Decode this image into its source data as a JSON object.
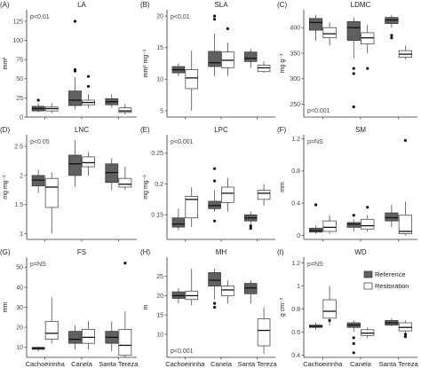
{
  "figure": {
    "categories": [
      "Cachoeirinha",
      "Canela",
      "Santa Tereza"
    ],
    "legend": {
      "entries": [
        "Reference",
        "Restoration"
      ]
    }
  },
  "colors": {
    "reference_fill": "#606060",
    "restoration_fill": "#ffffff",
    "box_stroke": "#333333",
    "axis": "#333333"
  },
  "chart_data": [
    {
      "panel": "(A)",
      "type": "boxplot",
      "title": "LA",
      "ylabel": "mm²",
      "pvalue": "p<0.01",
      "ylim": [
        0,
        140
      ],
      "yticks": [
        0,
        25,
        50,
        75,
        100,
        125
      ],
      "series": [
        {
          "name": "Reference",
          "boxes": [
            {
              "min": 6,
              "q1": 8,
              "median": 11,
              "q3": 14,
              "max": 18,
              "outliers": [
                22
              ]
            },
            {
              "min": 10,
              "q1": 15,
              "median": 22,
              "q3": 34,
              "max": 52,
              "outliers": [
                60,
                62,
                125
              ]
            },
            {
              "min": 12,
              "q1": 16,
              "median": 20,
              "q3": 24,
              "max": 30,
              "outliers": []
            }
          ]
        },
        {
          "name": "Restoration",
          "boxes": [
            {
              "min": 5,
              "q1": 8,
              "median": 11,
              "q3": 13,
              "max": 18,
              "outliers": []
            },
            {
              "min": 12,
              "q1": 16,
              "median": 19,
              "q3": 22,
              "max": 30,
              "outliers": [
                40,
                53
              ]
            },
            {
              "min": 3,
              "q1": 6,
              "median": 8,
              "q3": 12,
              "max": 17,
              "outliers": []
            }
          ]
        }
      ]
    },
    {
      "panel": "(B)",
      "type": "boxplot",
      "title": "SLA",
      "ylabel": "mm² mg⁻¹",
      "pvalue": "p<0.01",
      "ylim": [
        4,
        21
      ],
      "yticks": [
        5,
        10,
        15,
        20
      ],
      "series": [
        {
          "name": "Reference",
          "boxes": [
            {
              "min": 10.5,
              "q1": 11.0,
              "median": 11.5,
              "q3": 12.0,
              "max": 12.5,
              "outliers": []
            },
            {
              "min": 10.5,
              "q1": 12.0,
              "median": 12.6,
              "q3": 14.4,
              "max": 17.2,
              "outliers": [
                19.5,
                20.0
              ]
            },
            {
              "min": 11.8,
              "q1": 12.8,
              "median": 13.3,
              "q3": 14.3,
              "max": 14.8,
              "outliers": []
            }
          ]
        },
        {
          "name": "Restoration",
          "boxes": [
            {
              "min": 5.0,
              "q1": 8.5,
              "median": 10.2,
              "q3": 11.5,
              "max": 14.5,
              "outliers": []
            },
            {
              "min": 10.5,
              "q1": 11.8,
              "median": 13.0,
              "q3": 14.3,
              "max": 15.8,
              "outliers": [
                18.0
              ]
            },
            {
              "min": 11.0,
              "q1": 11.2,
              "median": 11.8,
              "q3": 12.2,
              "max": 12.8,
              "outliers": []
            }
          ]
        }
      ]
    },
    {
      "panel": "(C)",
      "type": "boxplot",
      "title": "LDMC",
      "ylabel": "mg g⁻¹",
      "pvalue": "p<0.001",
      "ylim": [
        225,
        435
      ],
      "yticks": [
        250,
        300,
        350,
        400
      ],
      "series": [
        {
          "name": "Reference",
          "boxes": [
            {
              "min": 375,
              "q1": 395,
              "median": 410,
              "q3": 418,
              "max": 425,
              "outliers": []
            },
            {
              "min": 340,
              "q1": 375,
              "median": 400,
              "q3": 412,
              "max": 420,
              "outliers": [
                320,
                310,
                245
              ]
            },
            {
              "min": 400,
              "q1": 408,
              "median": 415,
              "q3": 420,
              "max": 425,
              "outliers": [
                385,
                380
              ]
            }
          ]
        },
        {
          "name": "Restoration",
          "boxes": [
            {
              "min": 365,
              "q1": 380,
              "median": 388,
              "q3": 400,
              "max": 410,
              "outliers": []
            },
            {
              "min": 350,
              "q1": 368,
              "median": 380,
              "q3": 390,
              "max": 405,
              "outliers": [
                320
              ]
            },
            {
              "min": 338,
              "q1": 342,
              "median": 348,
              "q3": 355,
              "max": 365,
              "outliers": []
            }
          ]
        }
      ]
    },
    {
      "panel": "(D)",
      "type": "boxplot",
      "title": "LNC",
      "ylabel": "mg mg⁻¹",
      "pvalue": "p<0.05",
      "ylim": [
        0.9,
        2.7
      ],
      "yticks": [
        1.0,
        1.5,
        2.0,
        2.5
      ],
      "series": [
        {
          "name": "Reference",
          "boxes": [
            {
              "min": 1.7,
              "q1": 1.82,
              "median": 1.92,
              "q3": 2.0,
              "max": 2.1,
              "outliers": []
            },
            {
              "min": 1.8,
              "q1": 2.0,
              "median": 2.2,
              "q3": 2.35,
              "max": 2.6,
              "outliers": []
            },
            {
              "min": 1.75,
              "q1": 1.88,
              "median": 2.05,
              "q3": 2.2,
              "max": 2.3,
              "outliers": []
            }
          ]
        },
        {
          "name": "Restoration",
          "boxes": [
            {
              "min": 1.0,
              "q1": 1.45,
              "median": 1.8,
              "q3": 1.95,
              "max": 2.05,
              "outliers": []
            },
            {
              "min": 2.0,
              "q1": 2.15,
              "median": 2.22,
              "q3": 2.32,
              "max": 2.4,
              "outliers": []
            },
            {
              "min": 1.75,
              "q1": 1.8,
              "median": 1.85,
              "q3": 1.95,
              "max": 2.15,
              "outliers": []
            }
          ]
        }
      ]
    },
    {
      "panel": "(E)",
      "type": "boxplot",
      "title": "LPC",
      "ylabel": "mg mg⁻¹",
      "pvalue": "p<0.001",
      "ylim": [
        0.11,
        0.28
      ],
      "yticks": [
        0.15,
        0.2,
        0.25
      ],
      "series": [
        {
          "name": "Reference",
          "boxes": [
            {
              "min": 0.125,
              "q1": 0.13,
              "median": 0.135,
              "q3": 0.145,
              "max": 0.16,
              "outliers": []
            },
            {
              "min": 0.155,
              "q1": 0.16,
              "median": 0.165,
              "q3": 0.172,
              "max": 0.19,
              "outliers": [
                0.205,
                0.225,
                0.14
              ]
            },
            {
              "min": 0.135,
              "q1": 0.14,
              "median": 0.145,
              "q3": 0.15,
              "max": 0.155,
              "outliers": [
                0.132,
                0.128
              ]
            }
          ]
        },
        {
          "name": "Restoration",
          "boxes": [
            {
              "min": 0.13,
              "q1": 0.145,
              "median": 0.175,
              "q3": 0.18,
              "max": 0.195,
              "outliers": []
            },
            {
              "min": 0.155,
              "q1": 0.17,
              "median": 0.185,
              "q3": 0.195,
              "max": 0.21,
              "outliers": []
            },
            {
              "min": 0.165,
              "q1": 0.175,
              "median": 0.185,
              "q3": 0.19,
              "max": 0.2,
              "outliers": []
            }
          ]
        }
      ]
    },
    {
      "panel": "(F)",
      "type": "boxplot",
      "title": "SM",
      "ylabel": "mm",
      "pvalue": "p=NS",
      "ylim": [
        -0.05,
        1.25
      ],
      "yticks": [
        0.0,
        0.4,
        0.8,
        1.2
      ],
      "series": [
        {
          "name": "Reference",
          "boxes": [
            {
              "min": 0.02,
              "q1": 0.04,
              "median": 0.06,
              "q3": 0.09,
              "max": 0.12,
              "outliers": [
                0.38
              ]
            },
            {
              "min": 0.05,
              "q1": 0.1,
              "median": 0.14,
              "q3": 0.16,
              "max": 0.2,
              "outliers": [
                0.25
              ]
            },
            {
              "min": 0.1,
              "q1": 0.18,
              "median": 0.22,
              "q3": 0.28,
              "max": 0.38,
              "outliers": []
            }
          ]
        },
        {
          "name": "Restoration",
          "boxes": [
            {
              "min": 0.02,
              "q1": 0.05,
              "median": 0.1,
              "q3": 0.18,
              "max": 0.25,
              "outliers": []
            },
            {
              "min": 0.05,
              "q1": 0.08,
              "median": 0.12,
              "q3": 0.2,
              "max": 0.25,
              "outliers": [
                0.35
              ]
            },
            {
              "min": 0.0,
              "q1": 0.02,
              "median": 0.05,
              "q3": 0.25,
              "max": 0.42,
              "outliers": [
                1.18
              ]
            }
          ]
        }
      ]
    },
    {
      "panel": "(G)",
      "type": "boxplot",
      "title": "FS",
      "ylabel": "mm",
      "pvalue": "p=NS",
      "ylim": [
        5,
        55
      ],
      "yticks": [
        10,
        20,
        30,
        40,
        50
      ],
      "series": [
        {
          "name": "Reference",
          "boxes": [
            {
              "min": 8,
              "q1": 9,
              "median": 9.5,
              "q3": 10,
              "max": 10.5,
              "outliers": []
            },
            {
              "min": 9,
              "q1": 12,
              "median": 14,
              "q3": 18,
              "max": 21,
              "outliers": []
            },
            {
              "min": 8,
              "q1": 12,
              "median": 15,
              "q3": 18,
              "max": 23,
              "outliers": []
            }
          ]
        },
        {
          "name": "Restoration",
          "boxes": [
            {
              "min": 12,
              "q1": 14,
              "median": 17,
              "q3": 23,
              "max": 35,
              "outliers": []
            },
            {
              "min": 9,
              "q1": 12,
              "median": 15,
              "q3": 19,
              "max": 23,
              "outliers": []
            },
            {
              "min": 5,
              "q1": 6,
              "median": 11,
              "q3": 19,
              "max": 28,
              "outliers": [
                52
              ]
            }
          ]
        }
      ]
    },
    {
      "panel": "(H)",
      "type": "boxplot",
      "title": "MH",
      "ylabel": "m",
      "pvalue": "p<0.001",
      "ylim": [
        4,
        30
      ],
      "yticks": [
        10,
        15,
        20,
        25
      ],
      "series": [
        {
          "name": "Reference",
          "boxes": [
            {
              "min": 18,
              "q1": 19.3,
              "median": 20,
              "q3": 21,
              "max": 22,
              "outliers": []
            },
            {
              "min": 19,
              "q1": 22.5,
              "median": 24,
              "q3": 26,
              "max": 27,
              "outliers": [
                17,
                18
              ]
            },
            {
              "min": 18,
              "q1": 20.5,
              "median": 22,
              "q3": 23.2,
              "max": 24,
              "outliers": []
            }
          ]
        },
        {
          "name": "Restoration",
          "boxes": [
            {
              "min": 17.5,
              "q1": 19,
              "median": 20,
              "q3": 21.2,
              "max": 27,
              "outliers": []
            },
            {
              "min": 18,
              "q1": 20,
              "median": 21.5,
              "q3": 22.5,
              "max": 24,
              "outliers": []
            },
            {
              "min": 5,
              "q1": 7,
              "median": 11,
              "q3": 14,
              "max": 17,
              "outliers": []
            }
          ]
        }
      ]
    },
    {
      "panel": "(I)",
      "type": "boxplot",
      "title": "WD",
      "ylabel": "g cm⁻³",
      "pvalue": "p=NS",
      "ylim": [
        0.38,
        1.25
      ],
      "yticks": [
        0.4,
        0.6,
        0.8,
        1.0,
        1.2
      ],
      "series": [
        {
          "name": "Reference",
          "boxes": [
            {
              "min": 0.62,
              "q1": 0.64,
              "median": 0.65,
              "q3": 0.66,
              "max": 0.68,
              "outliers": []
            },
            {
              "min": 0.6,
              "q1": 0.64,
              "median": 0.66,
              "q3": 0.68,
              "max": 0.7,
              "outliers": [
                0.55,
                0.5,
                0.42
              ]
            },
            {
              "min": 0.65,
              "q1": 0.66,
              "median": 0.68,
              "q3": 0.7,
              "max": 0.72,
              "outliers": []
            }
          ]
        },
        {
          "name": "Restoration",
          "boxes": [
            {
              "min": 0.66,
              "q1": 0.72,
              "median": 0.78,
              "q3": 0.88,
              "max": 1.0,
              "outliers": [
                0.7
              ]
            },
            {
              "min": 0.55,
              "q1": 0.57,
              "median": 0.59,
              "q3": 0.62,
              "max": 0.64,
              "outliers": []
            },
            {
              "min": 0.58,
              "q1": 0.61,
              "median": 0.64,
              "q3": 0.68,
              "max": 0.7,
              "outliers": [
                0.56,
                0.58
              ]
            }
          ]
        }
      ]
    }
  ]
}
